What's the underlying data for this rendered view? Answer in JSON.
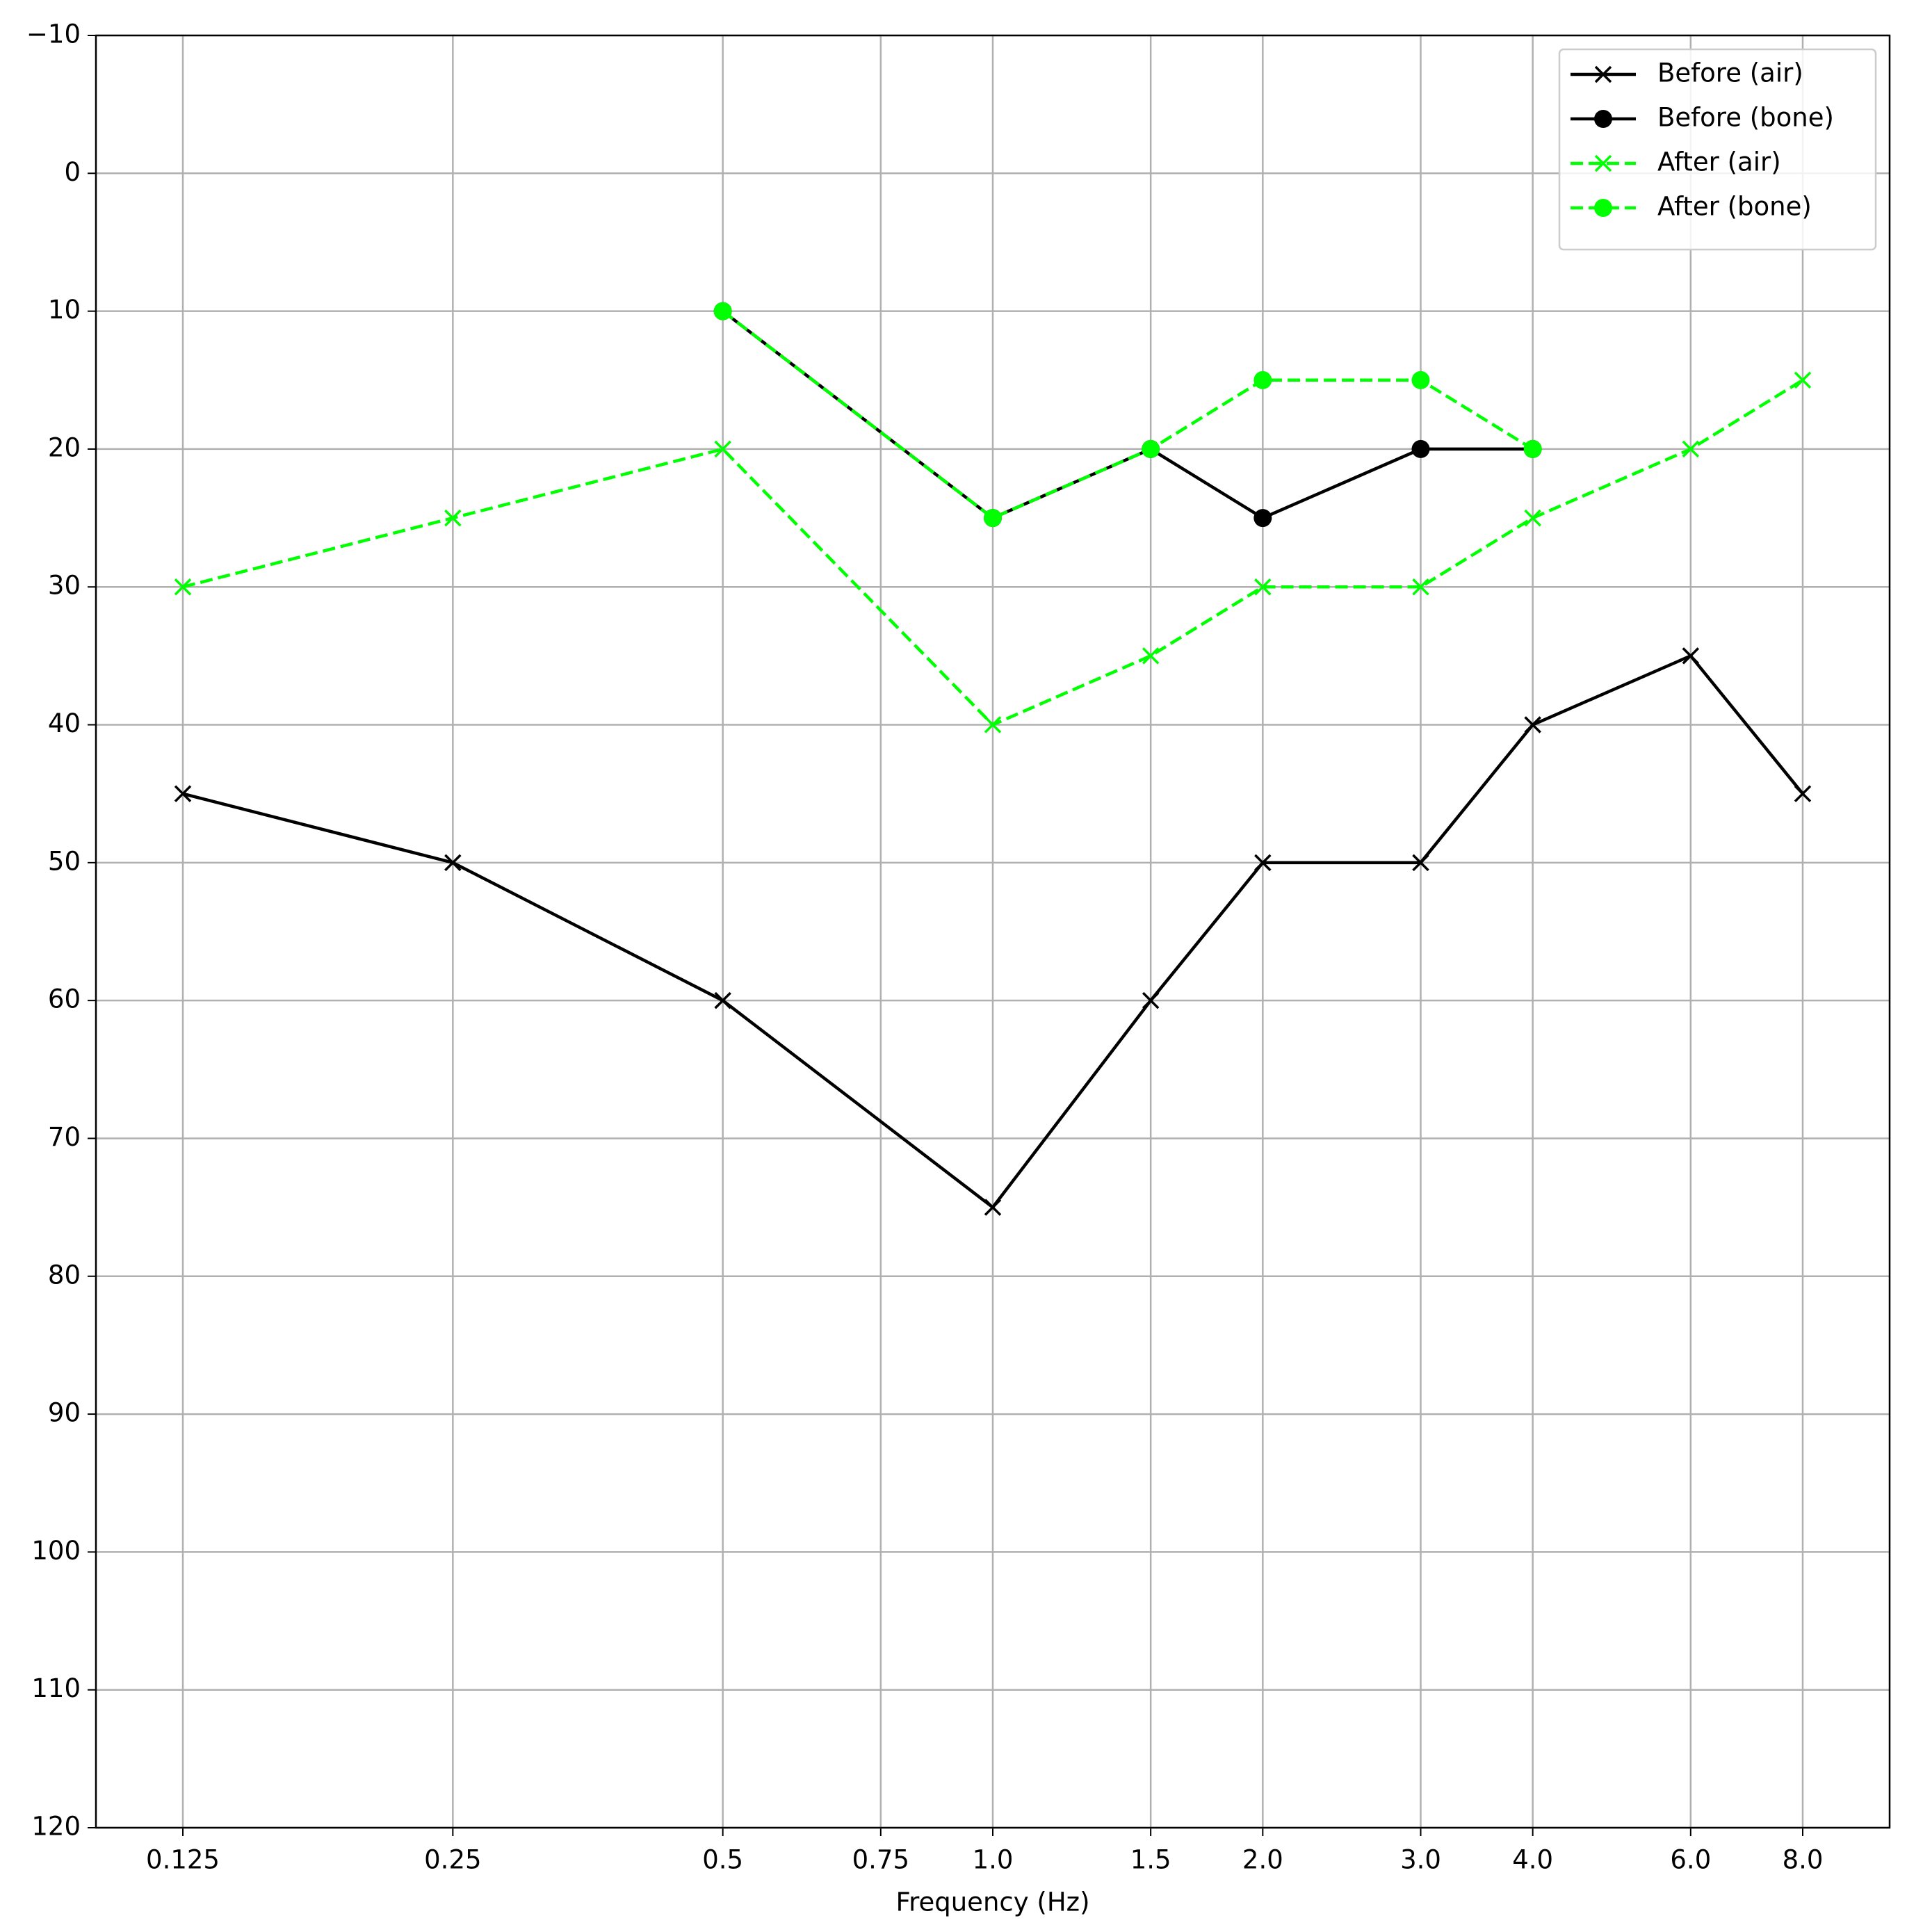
{
  "chart_data": {
    "type": "line",
    "x_label": "Frequency (Hz)",
    "xscale": "log",
    "grid": true,
    "legend": "upper right",
    "y_inverted": true,
    "xlim": [
      0.1,
      10
    ],
    "ylim": [
      -10,
      120
    ],
    "xticks": [
      0.125,
      0.25,
      0.5,
      0.75,
      {
        "value": 1,
        "label": "1.0"
      },
      1.5,
      {
        "value": 2,
        "label": "2.0"
      },
      {
        "value": 3,
        "label": "3.0"
      },
      {
        "value": 4,
        "label": "4.0"
      },
      {
        "value": 6,
        "label": "6.0"
      },
      {
        "value": 8,
        "label": "8.0"
      }
    ],
    "yticks": [
      {
        "value": -10,
        "label": "−10"
      },
      0,
      10,
      20,
      30,
      40,
      50,
      60,
      70,
      80,
      90,
      100,
      110,
      120
    ],
    "series": [
      {
        "name": "Before (air)",
        "color": "#000000",
        "linestyle": "solid",
        "marker": "x",
        "x": [
          0.125,
          0.25,
          0.5,
          1,
          1.5,
          2,
          3,
          4,
          6,
          8
        ],
        "values": [
          45,
          50,
          60,
          75,
          60,
          50,
          50,
          40,
          35,
          45
        ]
      },
      {
        "name": "Before (bone)",
        "color": "#000000",
        "linestyle": "solid",
        "marker": "o",
        "x": [
          0.5,
          1,
          1.5,
          2,
          3,
          4
        ],
        "values": [
          10,
          25,
          20,
          25,
          20,
          20
        ]
      },
      {
        "name": "After (air)",
        "color": "#00ff00",
        "linestyle": "dashed",
        "marker": "x",
        "x": [
          0.125,
          0.25,
          0.5,
          1,
          1.5,
          2,
          3,
          4,
          6,
          8
        ],
        "values": [
          30,
          25,
          20,
          40,
          35,
          30,
          30,
          25,
          20,
          15
        ]
      },
      {
        "name": "After (bone)",
        "color": "#00ff00",
        "linestyle": "dashed",
        "marker": "o",
        "x": [
          0.5,
          1,
          1.5,
          2,
          3,
          4
        ],
        "values": [
          10,
          25,
          20,
          15,
          15,
          20
        ]
      }
    ]
  }
}
